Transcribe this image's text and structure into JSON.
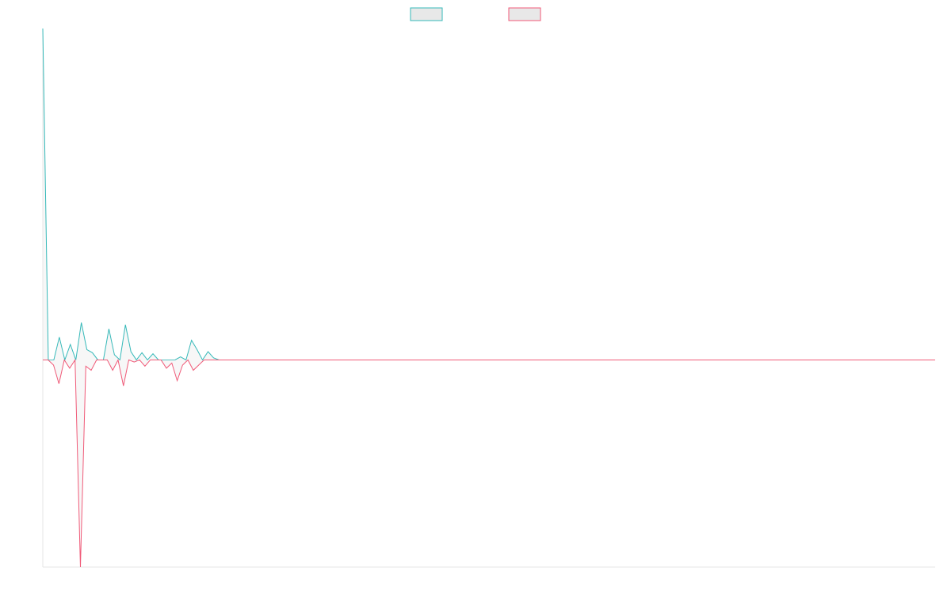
{
  "chart_data": {
    "type": "line",
    "title": "",
    "xlabel": "",
    "ylabel": "",
    "grid": false,
    "legend_position": "top-center",
    "x_range": [
      0,
      165
    ],
    "ylim": [
      -2.0,
      3.2
    ],
    "series": [
      {
        "color": "#36b9b9",
        "fill": "#e8e8e8",
        "values": [
          3.2,
          0,
          0,
          0.22,
          0,
          0.15,
          0,
          0.36,
          0.1,
          0.07,
          0,
          0,
          0.3,
          0.05,
          0,
          0.34,
          0.08,
          0,
          0.07,
          0,
          0.06,
          0,
          0,
          0,
          0,
          0.03,
          0,
          0.19,
          0.1,
          0,
          0.08,
          0.02,
          0,
          0,
          0,
          0,
          0,
          0,
          0,
          0,
          0,
          0,
          0,
          0,
          0,
          0,
          0,
          0,
          0,
          0,
          0,
          0,
          0,
          0,
          0,
          0,
          0,
          0,
          0,
          0,
          0,
          0,
          0,
          0,
          0,
          0,
          0,
          0,
          0,
          0,
          0,
          0,
          0,
          0,
          0,
          0,
          0,
          0,
          0,
          0,
          0,
          0,
          0,
          0,
          0,
          0,
          0,
          0,
          0,
          0,
          0,
          0,
          0,
          0,
          0,
          0,
          0,
          0,
          0,
          0,
          0,
          0,
          0,
          0,
          0,
          0,
          0,
          0,
          0,
          0,
          0,
          0,
          0,
          0,
          0,
          0,
          0,
          0,
          0,
          0,
          0,
          0,
          0,
          0,
          0,
          0,
          0,
          0,
          0,
          0,
          0,
          0,
          0,
          0,
          0,
          0,
          0,
          0,
          0,
          0,
          0,
          0,
          0,
          0,
          0,
          0,
          0,
          0,
          0,
          0,
          0,
          0,
          0,
          0,
          0,
          0,
          0,
          0,
          0,
          0,
          0,
          0,
          0
        ]
      },
      {
        "color": "#f05a78",
        "fill": "#e8e8e8",
        "values": [
          0,
          0,
          -0.05,
          -0.23,
          0,
          -0.08,
          0,
          -2.0,
          -0.06,
          -0.1,
          0,
          0,
          0,
          -0.1,
          0,
          -0.25,
          0,
          -0.02,
          0,
          -0.06,
          0,
          0,
          0,
          -0.08,
          -0.03,
          -0.2,
          -0.05,
          0,
          -0.1,
          -0.05,
          0,
          0,
          0,
          0,
          0,
          0,
          0,
          0,
          0,
          0,
          0,
          0,
          0,
          0,
          0,
          0,
          0,
          0,
          0,
          0,
          0,
          0,
          0,
          0,
          0,
          0,
          0,
          0,
          0,
          0,
          0,
          0,
          0,
          0,
          0,
          0,
          0,
          0,
          0,
          0,
          0,
          0,
          0,
          0,
          0,
          0,
          0,
          0,
          0,
          0,
          0,
          0,
          0,
          0,
          0,
          0,
          0,
          0,
          0,
          0,
          0,
          0,
          0,
          0,
          0,
          0,
          0,
          0,
          0,
          0,
          0,
          0,
          0,
          0,
          0,
          0,
          0,
          0,
          0,
          0,
          0,
          0,
          0,
          0,
          0,
          0,
          0,
          0,
          0,
          0,
          0,
          0,
          0,
          0,
          0,
          0,
          0,
          0,
          0,
          0,
          0,
          0,
          0,
          0,
          0,
          0,
          0,
          0,
          0,
          0,
          0,
          0,
          0,
          0,
          0,
          0,
          0,
          0,
          0,
          0,
          0,
          0,
          0,
          0,
          0,
          0,
          0,
          0,
          0,
          0,
          0,
          0,
          0,
          0,
          0,
          0,
          0
        ]
      }
    ]
  }
}
